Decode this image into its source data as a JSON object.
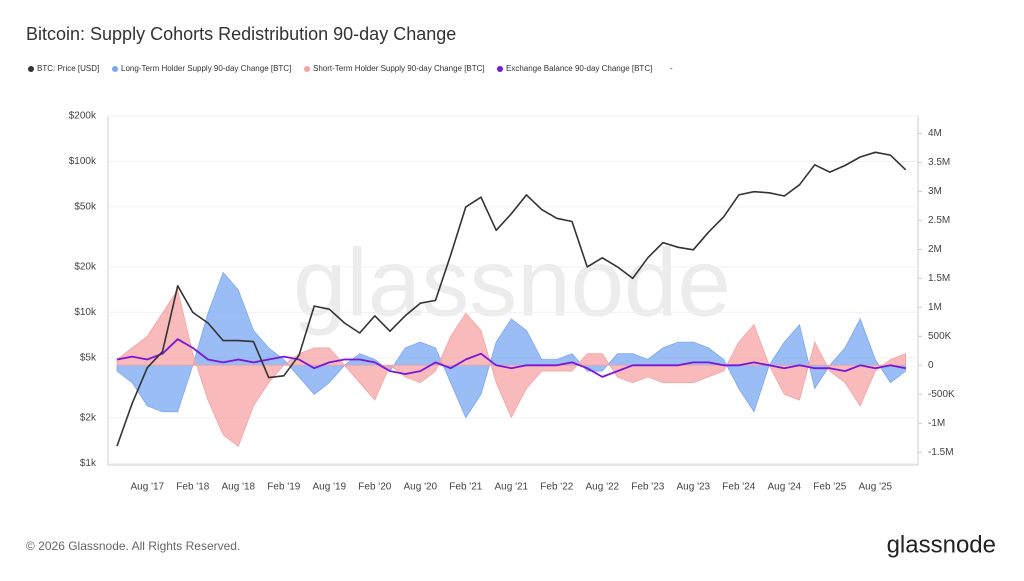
{
  "chart_data": {
    "type": "line",
    "title": "Bitcoin: Supply Cohorts Redistribution 90-day Change",
    "watermark": "glassnode",
    "legend_extra": "-",
    "yscale": "log",
    "grid": true,
    "categories": [
      null,
      null,
      "Aug '17",
      null,
      null,
      "Feb '18",
      null,
      null,
      "Aug '18",
      null,
      null,
      "Feb '19",
      null,
      null,
      "Aug '19",
      null,
      null,
      "Feb '20",
      null,
      null,
      "Aug '20",
      null,
      null,
      "Feb '21",
      null,
      null,
      "Aug '21",
      null,
      null,
      "Feb '22",
      null,
      null,
      "Aug '22",
      null,
      null,
      "Feb '23",
      null,
      null,
      "Aug '23",
      null,
      null,
      "Feb '24",
      null,
      null,
      "Aug '24",
      null,
      null,
      "Feb '25",
      null,
      null,
      "Aug '25",
      null,
      null
    ],
    "ylim": [
      975,
      200000
    ],
    "yticks": [
      {
        "value": 1000,
        "label": "$1k"
      },
      {
        "value": 2000,
        "label": "$2k"
      },
      {
        "value": 5000,
        "label": "$5k"
      },
      {
        "value": 10000,
        "label": "$10k"
      },
      {
        "value": 20000,
        "label": "$20k"
      },
      {
        "value": 50000,
        "label": "$50k"
      },
      {
        "value": 100000,
        "label": "$100k"
      },
      {
        "value": 200000,
        "label": "$200k"
      }
    ],
    "y2lim": [
      -1720000,
      4300000
    ],
    "y2ticks": [
      {
        "value": 4000000,
        "label": "4M"
      },
      {
        "value": 3500000,
        "label": "3.5M"
      },
      {
        "value": 3000000,
        "label": "3M"
      },
      {
        "value": 2500000,
        "label": "2.5M"
      },
      {
        "value": 2000000,
        "label": "2M"
      },
      {
        "value": 1500000,
        "label": "1.5M"
      },
      {
        "value": 1000000,
        "label": "1M"
      },
      {
        "value": 500000,
        "label": "500K"
      },
      0,
      {
        "value": -500000,
        "label": "-500K"
      },
      {
        "value": -1000000,
        "label": "-1M"
      },
      {
        "value": -1500000,
        "label": "-1.5M"
      }
    ],
    "series": [
      {
        "name": "BTC: Price [USD]",
        "color": "#333333",
        "axis": "y",
        "style": "line",
        "values": [
          1300,
          2500,
          4300,
          5500,
          15000,
          10000,
          8500,
          6500,
          6500,
          6400,
          3700,
          3800,
          5200,
          11000,
          10500,
          8500,
          7300,
          9500,
          7500,
          9500,
          11500,
          12000,
          24000,
          50000,
          58000,
          35000,
          45000,
          60000,
          48000,
          42000,
          40000,
          20000,
          23000,
          20000,
          16800,
          23000,
          29000,
          27000,
          26000,
          34000,
          43000,
          60000,
          63000,
          62000,
          59000,
          70000,
          95000,
          85000,
          94000,
          107000,
          115000,
          110000,
          88000
        ]
      },
      {
        "name": "Long-Term Holder Supply 90-day Change [BTC]",
        "color": "#7aa7f2",
        "axis": "y2",
        "style": "area",
        "values": [
          -100000,
          -300000,
          -700000,
          -800000,
          -800000,
          0,
          900000,
          1600000,
          1300000,
          600000,
          300000,
          100000,
          -200000,
          -500000,
          -300000,
          0,
          200000,
          100000,
          -100000,
          300000,
          400000,
          300000,
          -300000,
          -900000,
          -500000,
          400000,
          800000,
          600000,
          100000,
          100000,
          200000,
          -100000,
          -100000,
          200000,
          200000,
          100000,
          300000,
          400000,
          400000,
          300000,
          100000,
          -400000,
          -800000,
          0,
          400000,
          700000,
          -400000,
          0,
          300000,
          800000,
          100000,
          -300000,
          -100000
        ]
      },
      {
        "name": "Short-Term Holder Supply 90-day Change [BTC]",
        "color": "#f5a3a3",
        "axis": "y2",
        "style": "area",
        "values": [
          100000,
          300000,
          500000,
          900000,
          1300000,
          200000,
          -600000,
          -1200000,
          -1400000,
          -700000,
          -300000,
          0,
          200000,
          300000,
          300000,
          0,
          -300000,
          -600000,
          0,
          -200000,
          -300000,
          -100000,
          500000,
          900000,
          600000,
          -300000,
          -900000,
          -400000,
          -100000,
          -100000,
          -100000,
          200000,
          200000,
          -200000,
          -300000,
          -200000,
          -300000,
          -300000,
          -300000,
          -200000,
          -100000,
          400000,
          700000,
          0,
          -500000,
          -600000,
          400000,
          -100000,
          -300000,
          -700000,
          -100000,
          100000,
          200000
        ]
      },
      {
        "name": "Exchange Balance 90-day Change [BTC]",
        "color": "#7a16d8",
        "axis": "y2",
        "style": "line",
        "values": [
          100000,
          150000,
          100000,
          200000,
          450000,
          300000,
          100000,
          50000,
          100000,
          50000,
          100000,
          150000,
          100000,
          -50000,
          50000,
          100000,
          100000,
          50000,
          -100000,
          -150000,
          -100000,
          50000,
          -50000,
          100000,
          200000,
          0,
          -50000,
          0,
          0,
          0,
          50000,
          -50000,
          -200000,
          -100000,
          0,
          0,
          0,
          0,
          50000,
          50000,
          0,
          0,
          50000,
          0,
          -50000,
          0,
          -50000,
          -50000,
          -100000,
          0,
          -50000,
          0,
          -50000
        ]
      }
    ]
  },
  "footer": {
    "copyright": "© 2026 Glassnode. All Rights Reserved.",
    "logo": "glassnode"
  }
}
